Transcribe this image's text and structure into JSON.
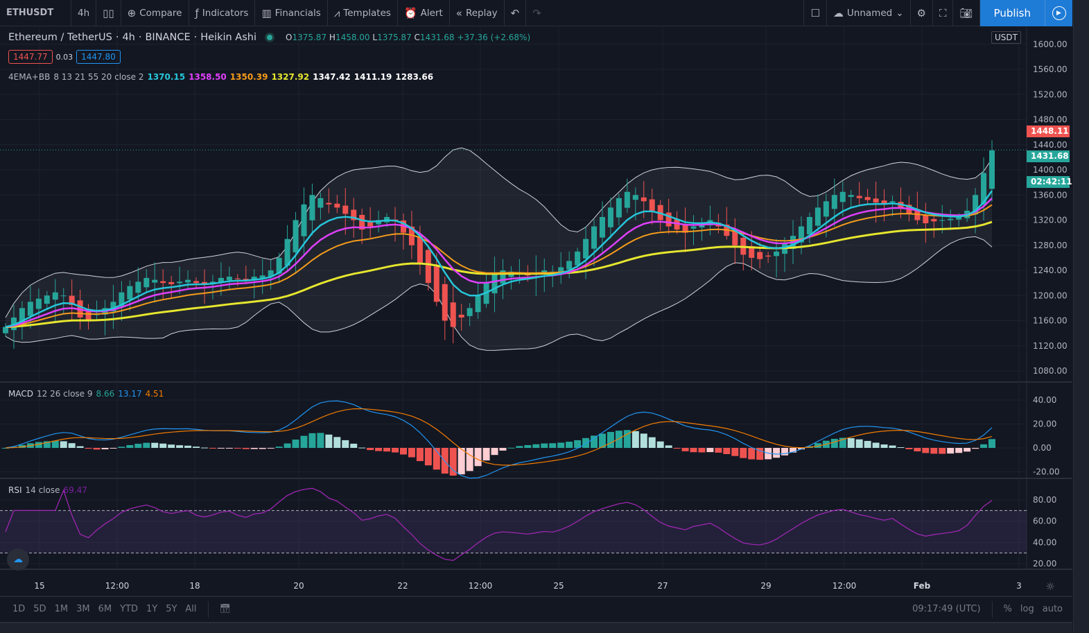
{
  "toolbar": {
    "symbol": "ETHUSDT",
    "interval": "4h",
    "compare": "Compare",
    "indicators": "Indicators",
    "financials": "Financials",
    "templates": "Templates",
    "alert": "Alert",
    "replay": "Replay",
    "layout_name": "Unnamed",
    "publish": "Publish"
  },
  "legend": {
    "title": "Ethereum / TetherUS",
    "interval": "4h",
    "exchange": "BINANCE",
    "chart_style": "Heikin Ashi",
    "o_label": "O",
    "o": "1375.87",
    "h_label": "H",
    "h": "1458.00",
    "l_label": "L",
    "l": "1375.87",
    "c_label": "C",
    "c": "1431.68",
    "change": "+37.36 (+2.68%)",
    "sell": "1447.77",
    "spread": "0.03",
    "buy": "1447.80"
  },
  "ema_bb": {
    "name": "4EMA+BB",
    "params": "8 13 21 55 20 close 2",
    "values": [
      "1370.15",
      "1358.50",
      "1350.39",
      "1327.92",
      "1347.42",
      "1411.19",
      "1283.66"
    ]
  },
  "macd": {
    "name": "MACD",
    "params": "12 26 close 9",
    "hist": "8.66",
    "macd": "13.17",
    "signal": "4.51"
  },
  "rsi": {
    "name": "RSI",
    "params": "14 close",
    "value": "69.47"
  },
  "price_axis": {
    "currency": "USDT",
    "ticks": [
      "1600.00",
      "1560.00",
      "1520.00",
      "1480.00",
      "1440.00",
      "1400.00",
      "1360.00",
      "1320.00",
      "1280.00",
      "1240.00",
      "1200.00",
      "1160.00",
      "1120.00",
      "1080.00"
    ],
    "ask_label": "1448.11",
    "last_label": "1431.68",
    "countdown": "02:42:11"
  },
  "macd_axis": {
    "ticks": [
      "40.00",
      "20.00",
      "0.00",
      "-20.00"
    ]
  },
  "rsi_axis": {
    "ticks": [
      "80.00",
      "60.00",
      "40.00",
      "20.00"
    ]
  },
  "time_axis": {
    "ticks": [
      "15",
      "12:00",
      "18",
      "20",
      "22",
      "12:00",
      "25",
      "27",
      "29",
      "12:00",
      "Feb",
      "3"
    ]
  },
  "bottom": {
    "ranges": [
      "1D",
      "5D",
      "1M",
      "3M",
      "6M",
      "YTD",
      "1Y",
      "5Y",
      "All"
    ],
    "clock": "09:17:49 (UTC)",
    "percent": "%",
    "log": "log",
    "auto": "auto"
  },
  "colors": {
    "up": "#26a69a",
    "down": "#ef5350",
    "ema8": "#26c6da",
    "ema13": "#e040fb",
    "ema21": "#f59c1a",
    "ema55": "#e6e62e",
    "bb": "#d1d4dc",
    "macd": "#2196f3",
    "signal": "#f57c00",
    "rsi": "#9c27b0",
    "accent": "#1e7bd6"
  },
  "chart_data": {
    "type": "candlestick",
    "style": "Heikin Ashi",
    "ylim": [
      1060,
      1600
    ],
    "closes": [
      1150,
      1165,
      1180,
      1190,
      1195,
      1200,
      1205,
      1200,
      1185,
      1165,
      1160,
      1170,
      1180,
      1190,
      1205,
      1215,
      1222,
      1228,
      1225,
      1220,
      1218,
      1222,
      1225,
      1220,
      1218,
      1222,
      1228,
      1230,
      1226,
      1224,
      1230,
      1232,
      1240,
      1260,
      1290,
      1320,
      1345,
      1360,
      1355,
      1345,
      1340,
      1330,
      1320,
      1305,
      1310,
      1320,
      1325,
      1318,
      1300,
      1280,
      1250,
      1220,
      1190,
      1160,
      1150,
      1165,
      1180,
      1200,
      1220,
      1235,
      1240,
      1238,
      1235,
      1232,
      1236,
      1240,
      1238,
      1245,
      1255,
      1270,
      1290,
      1310,
      1325,
      1340,
      1355,
      1365,
      1360,
      1350,
      1335,
      1320,
      1310,
      1305,
      1300,
      1310,
      1315,
      1320,
      1310,
      1295,
      1280,
      1265,
      1260,
      1258,
      1262,
      1270,
      1282,
      1295,
      1310,
      1325,
      1340,
      1350,
      1360,
      1365,
      1360,
      1355,
      1352,
      1348,
      1345,
      1350,
      1340,
      1330,
      1320,
      1315,
      1318,
      1320,
      1322,
      1325,
      1335,
      1360,
      1395,
      1431
    ]
  }
}
